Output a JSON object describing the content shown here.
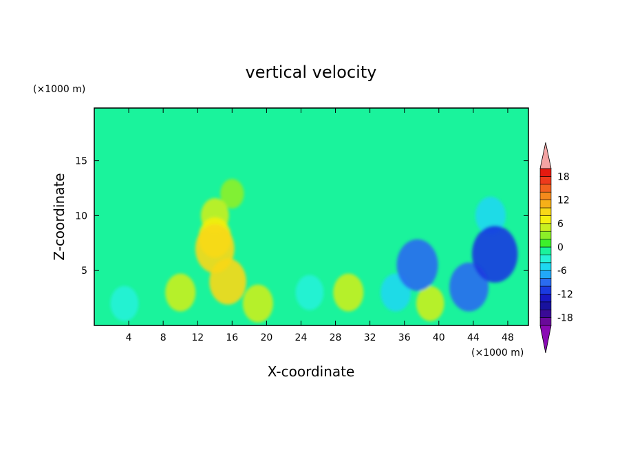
{
  "chart_data": {
    "type": "heatmap",
    "title": "vertical velocity",
    "xlabel": "X-coordinate",
    "ylabel": "Z-coordinate",
    "x_unit": "(×1000 m)",
    "y_unit": "(×1000 m)",
    "xlim": [
      0,
      50.4
    ],
    "ylim": [
      0,
      19.8
    ],
    "x_ticks": [
      4,
      8,
      12,
      16,
      20,
      24,
      28,
      32,
      36,
      40,
      44,
      48
    ],
    "y_ticks": [
      5,
      10,
      15
    ],
    "colorbar": {
      "levels": [
        -20,
        -18,
        -16,
        -14,
        -12,
        -10,
        -8,
        -6,
        -4,
        -2,
        0,
        2,
        4,
        6,
        8,
        10,
        12,
        14,
        16,
        18,
        20
      ],
      "tick_labels": [
        "18",
        "12",
        "6",
        "0",
        "-6",
        "-12",
        "-18"
      ],
      "tick_values": [
        18,
        12,
        6,
        0,
        -6,
        -12,
        -18
      ],
      "colors": [
        "#6a0a9a",
        "#3a0a96",
        "#18129e",
        "#1818c4",
        "#1a3ae0",
        "#2a6cf0",
        "#22a8f8",
        "#1ed8f0",
        "#26f2d8",
        "#1af39c",
        "#3df02c",
        "#8cef28",
        "#c8f020",
        "#f4f010",
        "#f8d818",
        "#f6b018",
        "#f48a1c",
        "#f2621e",
        "#ee3a1c",
        "#e41a10"
      ],
      "over_color": "#f4a4a4",
      "under_color": "#8a0ab4"
    },
    "background_value": -1,
    "cells": [
      {
        "x": 16,
        "z": 12,
        "value": 2
      },
      {
        "x": 14,
        "z": 10,
        "value": 4
      },
      {
        "x": 14,
        "z": 8,
        "value": 6
      },
      {
        "x": 14,
        "z": 7,
        "value": 9
      },
      {
        "x": 15.5,
        "z": 4,
        "value": 8
      },
      {
        "x": 10,
        "z": 3,
        "value": 5
      },
      {
        "x": 19,
        "z": 2,
        "value": 5
      },
      {
        "x": 29.5,
        "z": 3,
        "value": 5
      },
      {
        "x": 39,
        "z": 2,
        "value": 4
      },
      {
        "x": 3.5,
        "z": 2,
        "value": -4
      },
      {
        "x": 25,
        "z": 3,
        "value": -4
      },
      {
        "x": 35,
        "z": 3,
        "value": -5
      },
      {
        "x": 46.5,
        "z": 6.5,
        "value": -12
      },
      {
        "x": 43.5,
        "z": 3.5,
        "value": -9
      },
      {
        "x": 37.5,
        "z": 5.5,
        "value": -10
      },
      {
        "x": 46,
        "z": 10,
        "value": -5
      }
    ]
  }
}
